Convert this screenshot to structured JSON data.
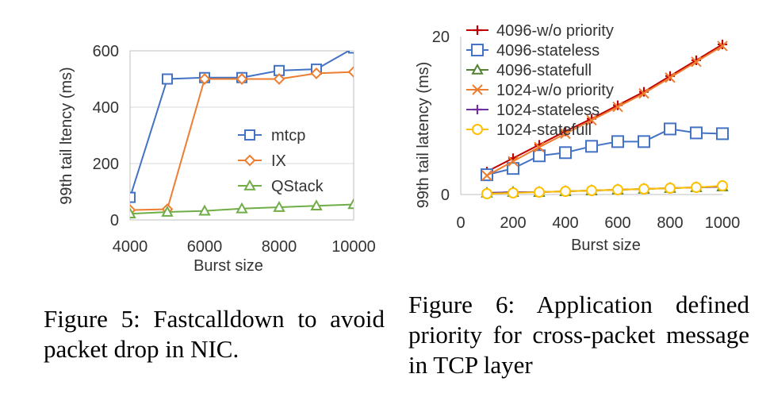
{
  "chart_data": [
    {
      "type": "line",
      "title": "",
      "xlabel": "Burst size",
      "ylabel": "99th tail ltency (ms)",
      "xlim": [
        4000,
        10000
      ],
      "ylim": [
        0,
        600
      ],
      "xticks": [
        "4000",
        "6000",
        "8000",
        "10000"
      ],
      "yticks": [
        "0",
        "200",
        "400",
        "600"
      ],
      "grid": true,
      "legend_position": "center-right",
      "series": [
        {
          "name": "mtcp",
          "color": "#4472C4",
          "marker": "square",
          "x": [
            4000,
            5000,
            6000,
            7000,
            8000,
            9000,
            10000
          ],
          "y": [
            80,
            500,
            505,
            505,
            530,
            535,
            610
          ]
        },
        {
          "name": "IX",
          "color": "#ED7D31",
          "marker": "diamond",
          "x": [
            4000,
            5000,
            6000,
            7000,
            8000,
            9000,
            10000
          ],
          "y": [
            35,
            38,
            500,
            500,
            500,
            520,
            525
          ]
        },
        {
          "name": "QStack",
          "color": "#70AD47",
          "marker": "triangle",
          "x": [
            4000,
            5000,
            6000,
            7000,
            8000,
            9000,
            10000
          ],
          "y": [
            22,
            28,
            32,
            40,
            45,
            50,
            55
          ]
        }
      ]
    },
    {
      "type": "line",
      "title": "",
      "xlabel": "Burst size",
      "ylabel": "99th tail latency (ms)",
      "xlim": [
        0,
        1000
      ],
      "ylim": [
        0,
        20
      ],
      "xticks": [
        "0",
        "200",
        "400",
        "600",
        "800",
        "1000"
      ],
      "yticks": [
        "0",
        "20"
      ],
      "grid": false,
      "legend_position": "top-left",
      "series": [
        {
          "name": "4096-w/o priority",
          "color": "#C00000",
          "marker": "plus",
          "x": [
            100,
            200,
            300,
            400,
            500,
            600,
            700,
            800,
            900,
            1000
          ],
          "y": [
            2.9,
            4.6,
            6.3,
            8.0,
            9.6,
            11.3,
            13.0,
            15.0,
            17.0,
            19.0
          ]
        },
        {
          "name": "4096-stateless",
          "color": "#4472C4",
          "marker": "square",
          "x": [
            100,
            200,
            300,
            400,
            500,
            600,
            700,
            800,
            900,
            1000
          ],
          "y": [
            2.5,
            3.3,
            4.9,
            5.3,
            6.1,
            6.7,
            6.7,
            8.3,
            7.8,
            7.7
          ]
        },
        {
          "name": "4096-statefull",
          "color": "#548235",
          "marker": "triangle",
          "x": [
            100,
            200,
            300,
            400,
            500,
            600,
            700,
            800,
            900,
            1000
          ],
          "y": [
            0.2,
            0.3,
            0.3,
            0.4,
            0.5,
            0.6,
            0.7,
            0.8,
            0.9,
            1.0
          ]
        },
        {
          "name": "1024-w/o priority",
          "color": "#ED7D31",
          "marker": "x",
          "x": [
            100,
            200,
            300,
            400,
            500,
            600,
            700,
            800,
            900,
            1000
          ],
          "y": [
            2.4,
            4.2,
            6.0,
            7.7,
            9.4,
            11.1,
            12.8,
            14.8,
            16.8,
            18.8
          ]
        },
        {
          "name": "1024-stateless",
          "color": "#7030A0",
          "marker": "plus",
          "x": [
            100,
            200,
            300,
            400,
            500,
            600,
            700,
            800,
            900,
            1000
          ],
          "y": [
            0.2,
            0.3,
            0.3,
            0.4,
            0.5,
            0.6,
            0.7,
            0.8,
            0.9,
            1.0
          ]
        },
        {
          "name": "1024-statefull",
          "color": "#FFC000",
          "marker": "circle",
          "x": [
            100,
            200,
            300,
            400,
            500,
            600,
            700,
            800,
            900,
            1000
          ],
          "y": [
            0.1,
            0.2,
            0.3,
            0.4,
            0.5,
            0.6,
            0.7,
            0.8,
            0.9,
            1.1
          ]
        }
      ]
    }
  ],
  "captions": {
    "fig5": "Figure 5: Fastcalldown to avoid packet drop in NIC.",
    "fig6": "Figure 6: Application defined priority for cross-packet message in TCP layer"
  }
}
